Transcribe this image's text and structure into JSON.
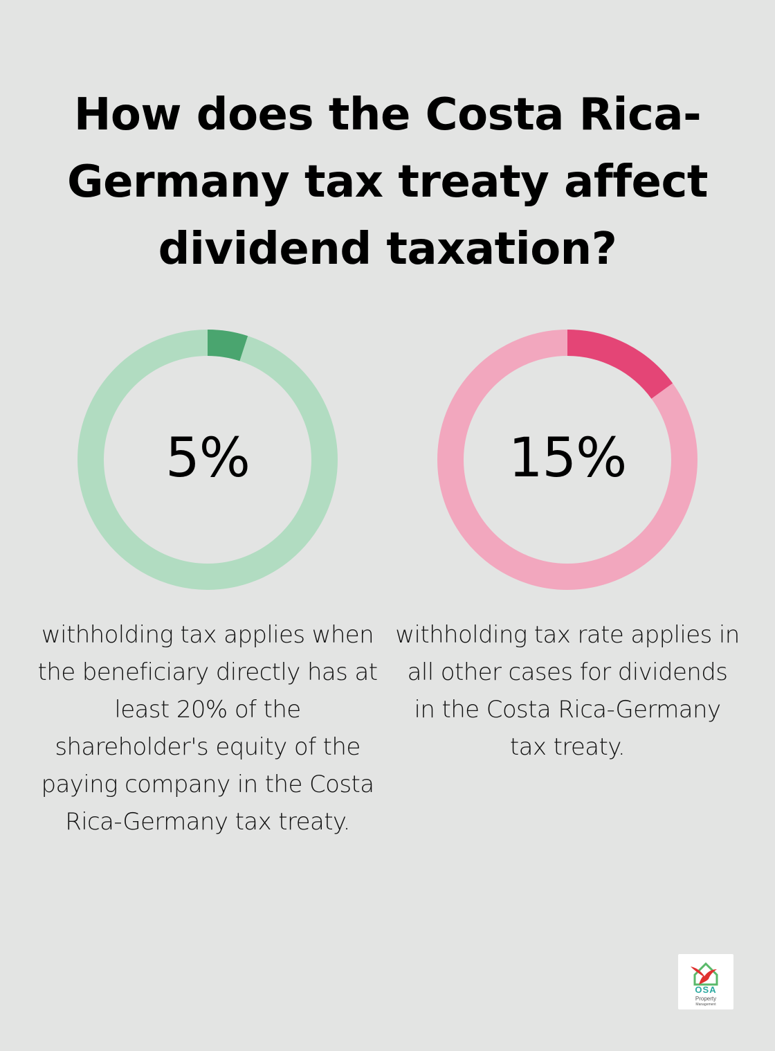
{
  "title": "How does the Costa Rica-Germany tax treaty affect dividend taxation?",
  "chart_data": [
    {
      "type": "pie",
      "title": "",
      "value_label": "5%",
      "values": [
        5,
        95
      ],
      "colors": {
        "filled": "#4aa56f",
        "remaining": "#b1dcc1"
      },
      "caption": "withholding tax applies when the beneficiary directly has at least 20% of the shareholder's equity of the paying company in the Costa Rica-Germany tax treaty."
    },
    {
      "type": "pie",
      "title": "",
      "value_label": "15%",
      "values": [
        15,
        85
      ],
      "colors": {
        "filled": "#e44576",
        "remaining": "#f2a7be"
      },
      "caption": "withholding tax rate applies in all other cases for dividends in the Costa Rica-Germany tax treaty."
    }
  ],
  "logo": {
    "name": "OSA",
    "line1": "Property",
    "line2": "Management",
    "colors": {
      "accent": "#2aa9a0",
      "bird": "#e0312f",
      "house": "#5ab96a"
    }
  }
}
